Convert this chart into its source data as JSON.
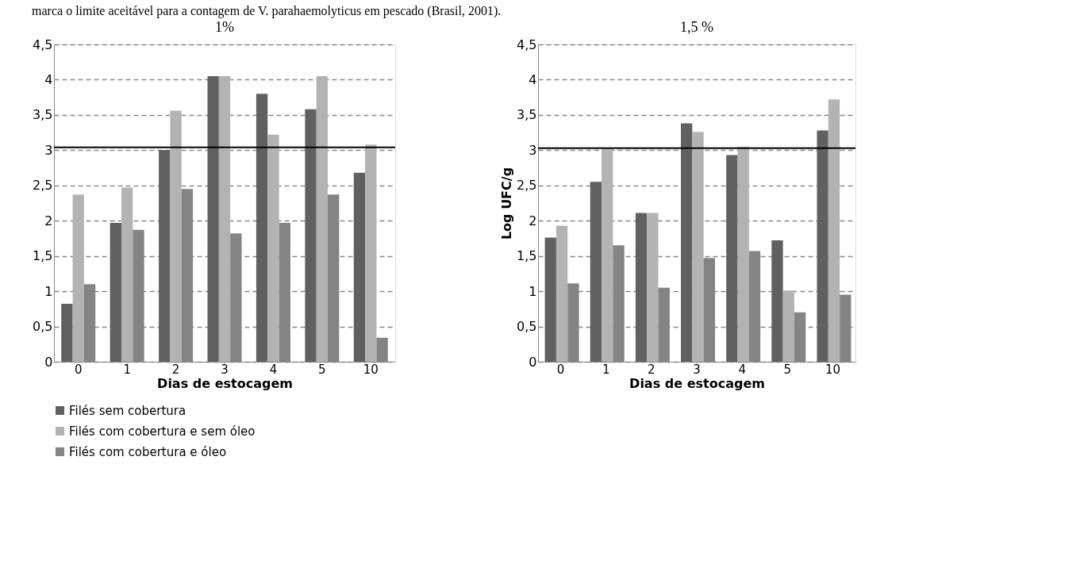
{
  "chart_data": [
    {
      "type": "bar",
      "title": "1%",
      "xlabel": "Dias de estocagem",
      "categories": [
        "0",
        "1",
        "2",
        "3",
        "4",
        "5",
        "10"
      ],
      "series": [
        {
          "name": "Filés sem cobertura",
          "color": "#606060",
          "values": [
            0.82,
            1.97,
            3.0,
            4.05,
            3.8,
            3.58,
            2.68
          ]
        },
        {
          "name": "Filés com cobertura e sem óleo",
          "color": "#b3b3b3",
          "values": [
            2.37,
            2.47,
            3.56,
            4.05,
            3.22,
            4.05,
            3.08
          ]
        },
        {
          "name": "Filés com cobertura e óleo",
          "color": "#848484",
          "values": [
            1.1,
            1.87,
            2.45,
            1.82,
            1.97,
            2.37,
            0.34
          ]
        }
      ],
      "ylim": [
        0,
        4.5
      ],
      "yticks": [
        0,
        {
          "value": 0.5,
          "label": "0,5"
        },
        1,
        {
          "value": 1.5,
          "label": "1,5"
        },
        2,
        {
          "value": 2.5,
          "label": "2,5"
        },
        3,
        {
          "value": 3.5,
          "label": "3,5"
        },
        4,
        {
          "value": 4.5,
          "label": "4,5"
        }
      ],
      "ref_lines": [
        {
          "axis": "y",
          "value": 3.04,
          "color": "#000000"
        }
      ],
      "grid": "y",
      "legend": "bottom",
      "annotations": [
        "marca o limite aceitável para a contagem de V. parahaemolyticus em pescado (Brasil, 2001)."
      ]
    },
    {
      "type": "bar",
      "title": "1,5 %",
      "xlabel": "Dias de estocagem",
      "ylabel": "Log UFC/g",
      "categories": [
        "0",
        "1",
        "2",
        "3",
        "4",
        "5",
        "10"
      ],
      "series": [
        {
          "color": "#606060",
          "values": [
            1.76,
            2.55,
            2.11,
            3.38,
            2.93,
            1.72,
            3.28
          ]
        },
        {
          "color": "#b3b3b3",
          "values": [
            1.93,
            3.02,
            2.11,
            3.26,
            3.05,
            1.01,
            3.72
          ]
        },
        {
          "color": "#848484",
          "values": [
            1.11,
            1.65,
            1.05,
            1.47,
            1.57,
            0.7,
            0.95
          ]
        }
      ],
      "ylim": [
        0,
        4.5
      ],
      "yticks": [
        0,
        {
          "value": 0.5,
          "label": "0,5"
        },
        1,
        {
          "value": 1.5,
          "label": "1,5"
        },
        2,
        {
          "value": 2.5,
          "label": "2,5"
        },
        3,
        {
          "value": 3.5,
          "label": "3,5"
        },
        4,
        {
          "value": 4.5,
          "label": "4,5"
        }
      ],
      "ref_lines": [
        {
          "axis": "y",
          "value": 3.03,
          "color": "#000000"
        }
      ],
      "grid": "y"
    }
  ]
}
